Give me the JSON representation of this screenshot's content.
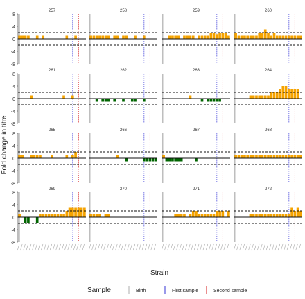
{
  "chart_data": {
    "type": "bar",
    "layout": "facet_grid_4x4",
    "xlabel": "Strain",
    "ylabel": "Fold change in titre",
    "ylim": [
      -8,
      8
    ],
    "yticks": [
      -8,
      -4,
      0,
      4,
      8
    ],
    "hlines": [
      2,
      -2
    ],
    "hline_style": "dashed",
    "baseline": 0,
    "positive_color": "#f5a300",
    "negative_color": "#006400",
    "n_strains": 23,
    "legend": {
      "title": "Sample",
      "position": "bottom",
      "items": [
        {
          "label": "Birth",
          "color": "#bbbbbb"
        },
        {
          "label": "First sample",
          "color": "#5555dd"
        },
        {
          "label": "Second sample",
          "color": "#dd4444"
        }
      ]
    },
    "panels": [
      {
        "label": "257",
        "marks": {
          "birth": 1,
          "first": 19,
          "second": 21
        },
        "values": [
          1,
          1,
          1,
          1,
          0,
          0,
          1,
          0,
          1,
          0,
          0,
          0,
          0,
          0,
          0,
          0,
          1,
          0,
          0,
          1,
          0,
          0,
          0
        ]
      },
      {
        "label": "258",
        "marks": {
          "birth": 1,
          "first": 19,
          "second": 21
        },
        "values": [
          1,
          1,
          1,
          1,
          1,
          1,
          1,
          0,
          1,
          1,
          0,
          1,
          1,
          0,
          0,
          1,
          0,
          0,
          1,
          0,
          0,
          0,
          0
        ]
      },
      {
        "label": "259",
        "marks": {
          "birth": 1,
          "first": 19,
          "second": 21
        },
        "values": [
          0,
          0,
          1,
          1,
          1,
          1,
          0,
          1,
          1,
          1,
          1,
          0,
          1,
          1,
          1,
          1,
          2,
          2,
          1.5,
          2,
          2,
          2,
          1
        ]
      },
      {
        "label": "260",
        "marks": {
          "birth": 1,
          "first": 19,
          "second": 21
        },
        "values": [
          2,
          1,
          1,
          1,
          1,
          1,
          1,
          1,
          2,
          2,
          3,
          2,
          1,
          2,
          1,
          1,
          1,
          1,
          1,
          1,
          1,
          1,
          1
        ]
      },
      {
        "label": "261",
        "marks": {
          "birth": 1,
          "first": 19,
          "second": 21
        },
        "values": [
          0,
          0,
          0,
          0,
          1,
          0,
          0,
          0,
          0,
          0,
          0,
          0,
          0,
          0,
          0,
          1,
          0,
          0,
          1,
          0,
          0,
          0,
          0
        ]
      },
      {
        "label": "262",
        "marks": {
          "birth": 1,
          "first": 19,
          "second": 21
        },
        "values": [
          0,
          0,
          -1,
          0,
          -1,
          -1,
          -1,
          0,
          -1,
          0,
          0,
          -1,
          0,
          0,
          -1,
          -1,
          0,
          0,
          -1,
          0,
          0,
          0,
          0
        ]
      },
      {
        "label": "263",
        "marks": {
          "birth": 1,
          "first": 19,
          "second": 21
        },
        "values": [
          0,
          0,
          0,
          0,
          0,
          0,
          0,
          0,
          0,
          1,
          0,
          0,
          0,
          -1,
          0,
          -1,
          -1,
          -1,
          -1,
          -1,
          0,
          0,
          0
        ]
      },
      {
        "label": "264",
        "marks": {
          "birth": 1,
          "first": 19,
          "second": 21
        },
        "values": [
          0,
          0,
          0,
          0,
          0,
          1,
          1,
          1,
          1,
          1,
          1,
          1,
          2,
          2,
          2,
          3,
          4,
          4,
          3,
          3,
          3,
          3,
          0
        ]
      },
      {
        "label": "265",
        "marks": {
          "birth": 1,
          "first": 19,
          "second": 21
        },
        "values": [
          1,
          1,
          0,
          0,
          1,
          1,
          1,
          1,
          0,
          0,
          0,
          1,
          0,
          0,
          0,
          0,
          1,
          0,
          1,
          2,
          0,
          0,
          0
        ]
      },
      {
        "label": "266",
        "marks": {
          "birth": 1,
          "first": 19,
          "second": 21
        },
        "values": [
          0,
          0,
          0,
          0,
          0,
          0,
          0,
          0,
          0,
          1,
          0,
          0,
          -1,
          0,
          0,
          0,
          0,
          0,
          -1,
          -1,
          -1,
          -1,
          -1
        ]
      },
      {
        "label": "267",
        "marks": {
          "birth": 1,
          "first": 19,
          "second": 21
        },
        "values": [
          1,
          -1,
          -1,
          -1,
          -1,
          -1,
          -1,
          0,
          0,
          0,
          0,
          -1,
          0,
          0,
          0,
          0,
          0,
          0,
          0,
          0,
          0,
          0,
          0
        ]
      },
      {
        "label": "268",
        "marks": {
          "birth": 1,
          "first": 19,
          "second": 21
        },
        "values": [
          1,
          1,
          1,
          1,
          1,
          1,
          1,
          1,
          1,
          1,
          1,
          1,
          1,
          1,
          1,
          1,
          1,
          1,
          1,
          1,
          1,
          1,
          1
        ]
      },
      {
        "label": "269",
        "marks": {
          "birth": 1,
          "first": 19,
          "second": 21
        },
        "values": [
          1,
          0,
          -2,
          -2,
          0,
          0,
          -2,
          1,
          1,
          1,
          1,
          1,
          1,
          1,
          1,
          1,
          2,
          3,
          3,
          3,
          3,
          3,
          3
        ]
      },
      {
        "label": "270",
        "marks": {
          "birth": 1,
          "first": 19,
          "second": 21
        },
        "values": [
          1,
          1,
          1,
          1,
          0,
          1,
          1,
          0,
          0,
          0,
          0,
          0,
          0,
          0,
          0,
          0,
          0,
          0,
          0,
          0,
          0,
          0,
          0
        ]
      },
      {
        "label": "271",
        "marks": {
          "birth": 1,
          "first": 19,
          "second": 21
        },
        "values": [
          0,
          0,
          0,
          0,
          1,
          1,
          1,
          1,
          0,
          1,
          2,
          2,
          1,
          1,
          1,
          1,
          1,
          1,
          2,
          2,
          2,
          0,
          2
        ]
      },
      {
        "label": "272",
        "marks": {
          "birth": 1,
          "first": 19,
          "second": 21
        },
        "values": [
          0,
          0,
          0,
          0,
          0,
          1,
          1,
          1,
          1,
          1,
          1,
          1,
          1,
          1,
          1,
          1,
          1,
          1,
          1,
          3,
          2,
          3,
          2
        ]
      }
    ]
  }
}
